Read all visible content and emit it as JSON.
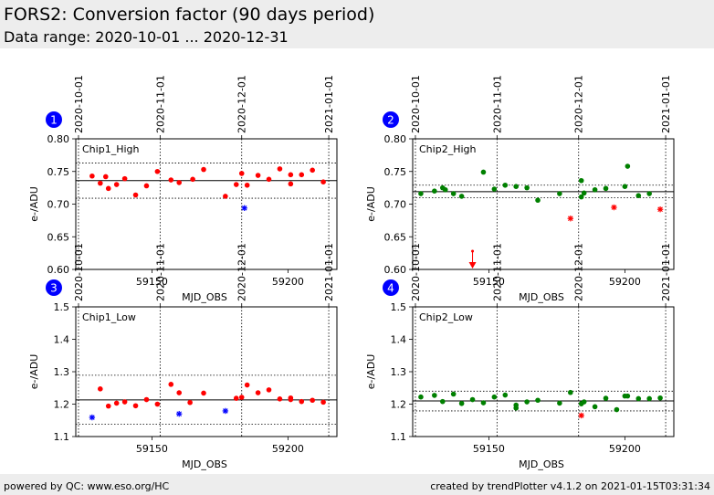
{
  "header": {
    "title": "FORS2: Conversion factor (90 days period)",
    "subtitle": "Data range: 2020-10-01 ... 2020-12-31"
  },
  "footer": {
    "left": "powered by QC: www.eso.org/HC",
    "right": "created by trendPlotter v4.1.2 on 2021-01-15T03:31:34"
  },
  "colors": {
    "chip1": "#ff0000",
    "chip2": "#008000",
    "outlier_blue": "#0000ff",
    "outlier_red": "#ff0000",
    "badge": "#0000ff"
  },
  "chart_data": [
    {
      "type": "scatter",
      "panel": "1",
      "label": "Chip1_High",
      "xlabel": "MJD_OBS",
      "ylabel": "e-/ADU",
      "xlim": [
        59122,
        59218
      ],
      "ylim": [
        0.6,
        0.8
      ],
      "xticks": [
        59150,
        59200
      ],
      "yticks": [
        0.6,
        0.65,
        0.7,
        0.75,
        0.8
      ],
      "date_ticks": [
        {
          "mjd": 59123,
          "label": "2020-10-01"
        },
        {
          "mjd": 59153,
          "label": "2020-11-01"
        },
        {
          "mjd": 59183,
          "label": "2020-12-01"
        },
        {
          "mjd": 59215,
          "label": "2021-01-01"
        }
      ],
      "mean": 0.736,
      "band": [
        0.709,
        0.763
      ],
      "points": [
        {
          "x": 59128,
          "y": 0.743
        },
        {
          "x": 59131,
          "y": 0.732
        },
        {
          "x": 59133,
          "y": 0.742
        },
        {
          "x": 59134,
          "y": 0.724
        },
        {
          "x": 59137,
          "y": 0.73
        },
        {
          "x": 59140,
          "y": 0.739
        },
        {
          "x": 59144,
          "y": 0.714
        },
        {
          "x": 59148,
          "y": 0.728
        },
        {
          "x": 59152,
          "y": 0.75
        },
        {
          "x": 59157,
          "y": 0.737
        },
        {
          "x": 59160,
          "y": 0.733
        },
        {
          "x": 59165,
          "y": 0.738
        },
        {
          "x": 59169,
          "y": 0.753
        },
        {
          "x": 59177,
          "y": 0.712
        },
        {
          "x": 59181,
          "y": 0.73
        },
        {
          "x": 59183,
          "y": 0.747
        },
        {
          "x": 59185,
          "y": 0.729
        },
        {
          "x": 59189,
          "y": 0.744
        },
        {
          "x": 59193,
          "y": 0.738
        },
        {
          "x": 59197,
          "y": 0.754
        },
        {
          "x": 59201,
          "y": 0.731
        },
        {
          "x": 59201,
          "y": 0.745
        },
        {
          "x": 59205,
          "y": 0.745
        },
        {
          "x": 59209,
          "y": 0.752
        },
        {
          "x": 59213,
          "y": 0.734
        }
      ],
      "outliers": [
        {
          "x": 59184,
          "y": 0.694,
          "color": "blue"
        }
      ],
      "arrows": []
    },
    {
      "type": "scatter",
      "panel": "2",
      "label": "Chip2_High",
      "xlabel": "MJD_OBS",
      "ylabel": "e-/ADU",
      "xlim": [
        59122,
        59218
      ],
      "ylim": [
        0.6,
        0.8
      ],
      "xticks": [
        59150,
        59200
      ],
      "yticks": [
        0.6,
        0.65,
        0.7,
        0.75,
        0.8
      ],
      "date_ticks": [
        {
          "mjd": 59123,
          "label": "2020-10-01"
        },
        {
          "mjd": 59153,
          "label": "2020-11-01"
        },
        {
          "mjd": 59183,
          "label": "2020-12-01"
        },
        {
          "mjd": 59215,
          "label": "2021-01-01"
        }
      ],
      "mean": 0.719,
      "band": [
        0.71,
        0.729
      ],
      "points": [
        {
          "x": 59125,
          "y": 0.716
        },
        {
          "x": 59130,
          "y": 0.72
        },
        {
          "x": 59133,
          "y": 0.725
        },
        {
          "x": 59134,
          "y": 0.722
        },
        {
          "x": 59137,
          "y": 0.716
        },
        {
          "x": 59140,
          "y": 0.712
        },
        {
          "x": 59148,
          "y": 0.749
        },
        {
          "x": 59152,
          "y": 0.723
        },
        {
          "x": 59156,
          "y": 0.729
        },
        {
          "x": 59160,
          "y": 0.727
        },
        {
          "x": 59164,
          "y": 0.725
        },
        {
          "x": 59168,
          "y": 0.706
        },
        {
          "x": 59176,
          "y": 0.716
        },
        {
          "x": 59184,
          "y": 0.736
        },
        {
          "x": 59184,
          "y": 0.711
        },
        {
          "x": 59185,
          "y": 0.717
        },
        {
          "x": 59189,
          "y": 0.722
        },
        {
          "x": 59193,
          "y": 0.724
        },
        {
          "x": 59200,
          "y": 0.727
        },
        {
          "x": 59201,
          "y": 0.758
        },
        {
          "x": 59205,
          "y": 0.713
        },
        {
          "x": 59209,
          "y": 0.716
        }
      ],
      "outliers": [
        {
          "x": 59180,
          "y": 0.678,
          "color": "red"
        },
        {
          "x": 59196,
          "y": 0.695,
          "color": "red"
        },
        {
          "x": 59213,
          "y": 0.692,
          "color": "red"
        }
      ],
      "arrows": [
        {
          "x": 59144,
          "y_from": 0.628
        }
      ]
    },
    {
      "type": "scatter",
      "panel": "3",
      "label": "Chip1_Low",
      "xlabel": "MJD_OBS",
      "ylabel": "e-/ADU",
      "xlim": [
        59122,
        59218
      ],
      "ylim": [
        1.1,
        1.5
      ],
      "xticks": [
        59150,
        59200
      ],
      "yticks": [
        1.1,
        1.2,
        1.3,
        1.4,
        1.5
      ],
      "date_ticks": [
        {
          "mjd": 59123,
          "label": "2020-10-01"
        },
        {
          "mjd": 59153,
          "label": "2020-11-01"
        },
        {
          "mjd": 59183,
          "label": "2020-12-01"
        },
        {
          "mjd": 59215,
          "label": "2021-01-01"
        }
      ],
      "mean": 1.213,
      "band": [
        1.138,
        1.289
      ],
      "points": [
        {
          "x": 59131,
          "y": 1.247
        },
        {
          "x": 59134,
          "y": 1.194
        },
        {
          "x": 59137,
          "y": 1.203
        },
        {
          "x": 59140,
          "y": 1.207
        },
        {
          "x": 59144,
          "y": 1.195
        },
        {
          "x": 59148,
          "y": 1.214
        },
        {
          "x": 59152,
          "y": 1.2
        },
        {
          "x": 59157,
          "y": 1.261
        },
        {
          "x": 59160,
          "y": 1.235
        },
        {
          "x": 59164,
          "y": 1.205
        },
        {
          "x": 59169,
          "y": 1.234
        },
        {
          "x": 59181,
          "y": 1.218
        },
        {
          "x": 59183,
          "y": 1.221
        },
        {
          "x": 59185,
          "y": 1.259
        },
        {
          "x": 59189,
          "y": 1.235
        },
        {
          "x": 59193,
          "y": 1.244
        },
        {
          "x": 59197,
          "y": 1.216
        },
        {
          "x": 59201,
          "y": 1.214
        },
        {
          "x": 59201,
          "y": 1.219
        },
        {
          "x": 59205,
          "y": 1.208
        },
        {
          "x": 59209,
          "y": 1.212
        },
        {
          "x": 59213,
          "y": 1.206
        }
      ],
      "outliers": [
        {
          "x": 59128,
          "y": 1.159,
          "color": "blue"
        },
        {
          "x": 59160,
          "y": 1.17,
          "color": "blue"
        },
        {
          "x": 59177,
          "y": 1.179,
          "color": "blue"
        }
      ],
      "arrows": []
    },
    {
      "type": "scatter",
      "panel": "4",
      "label": "Chip2_Low",
      "xlabel": "MJD_OBS",
      "ylabel": "e-/ADU",
      "xlim": [
        59122,
        59218
      ],
      "ylim": [
        1.1,
        1.5
      ],
      "xticks": [
        59150,
        59200
      ],
      "yticks": [
        1.1,
        1.2,
        1.3,
        1.4,
        1.5
      ],
      "date_ticks": [
        {
          "mjd": 59123,
          "label": "2020-10-01"
        },
        {
          "mjd": 59153,
          "label": "2020-11-01"
        },
        {
          "mjd": 59183,
          "label": "2020-12-01"
        },
        {
          "mjd": 59215,
          "label": "2021-01-01"
        }
      ],
      "mean": 1.21,
      "band": [
        1.179,
        1.24
      ],
      "points": [
        {
          "x": 59125,
          "y": 1.222
        },
        {
          "x": 59130,
          "y": 1.227
        },
        {
          "x": 59133,
          "y": 1.208
        },
        {
          "x": 59137,
          "y": 1.231
        },
        {
          "x": 59140,
          "y": 1.202
        },
        {
          "x": 59144,
          "y": 1.214
        },
        {
          "x": 59148,
          "y": 1.204
        },
        {
          "x": 59152,
          "y": 1.222
        },
        {
          "x": 59156,
          "y": 1.228
        },
        {
          "x": 59160,
          "y": 1.197
        },
        {
          "x": 59160,
          "y": 1.188
        },
        {
          "x": 59164,
          "y": 1.207
        },
        {
          "x": 59168,
          "y": 1.212
        },
        {
          "x": 59176,
          "y": 1.203
        },
        {
          "x": 59180,
          "y": 1.236
        },
        {
          "x": 59184,
          "y": 1.201
        },
        {
          "x": 59185,
          "y": 1.207
        },
        {
          "x": 59189,
          "y": 1.192
        },
        {
          "x": 59193,
          "y": 1.218
        },
        {
          "x": 59197,
          "y": 1.183
        },
        {
          "x": 59200,
          "y": 1.225
        },
        {
          "x": 59201,
          "y": 1.225
        },
        {
          "x": 59205,
          "y": 1.217
        },
        {
          "x": 59209,
          "y": 1.217
        },
        {
          "x": 59213,
          "y": 1.219
        }
      ],
      "outliers": [
        {
          "x": 59184,
          "y": 1.165,
          "color": "red"
        }
      ],
      "arrows": []
    }
  ]
}
